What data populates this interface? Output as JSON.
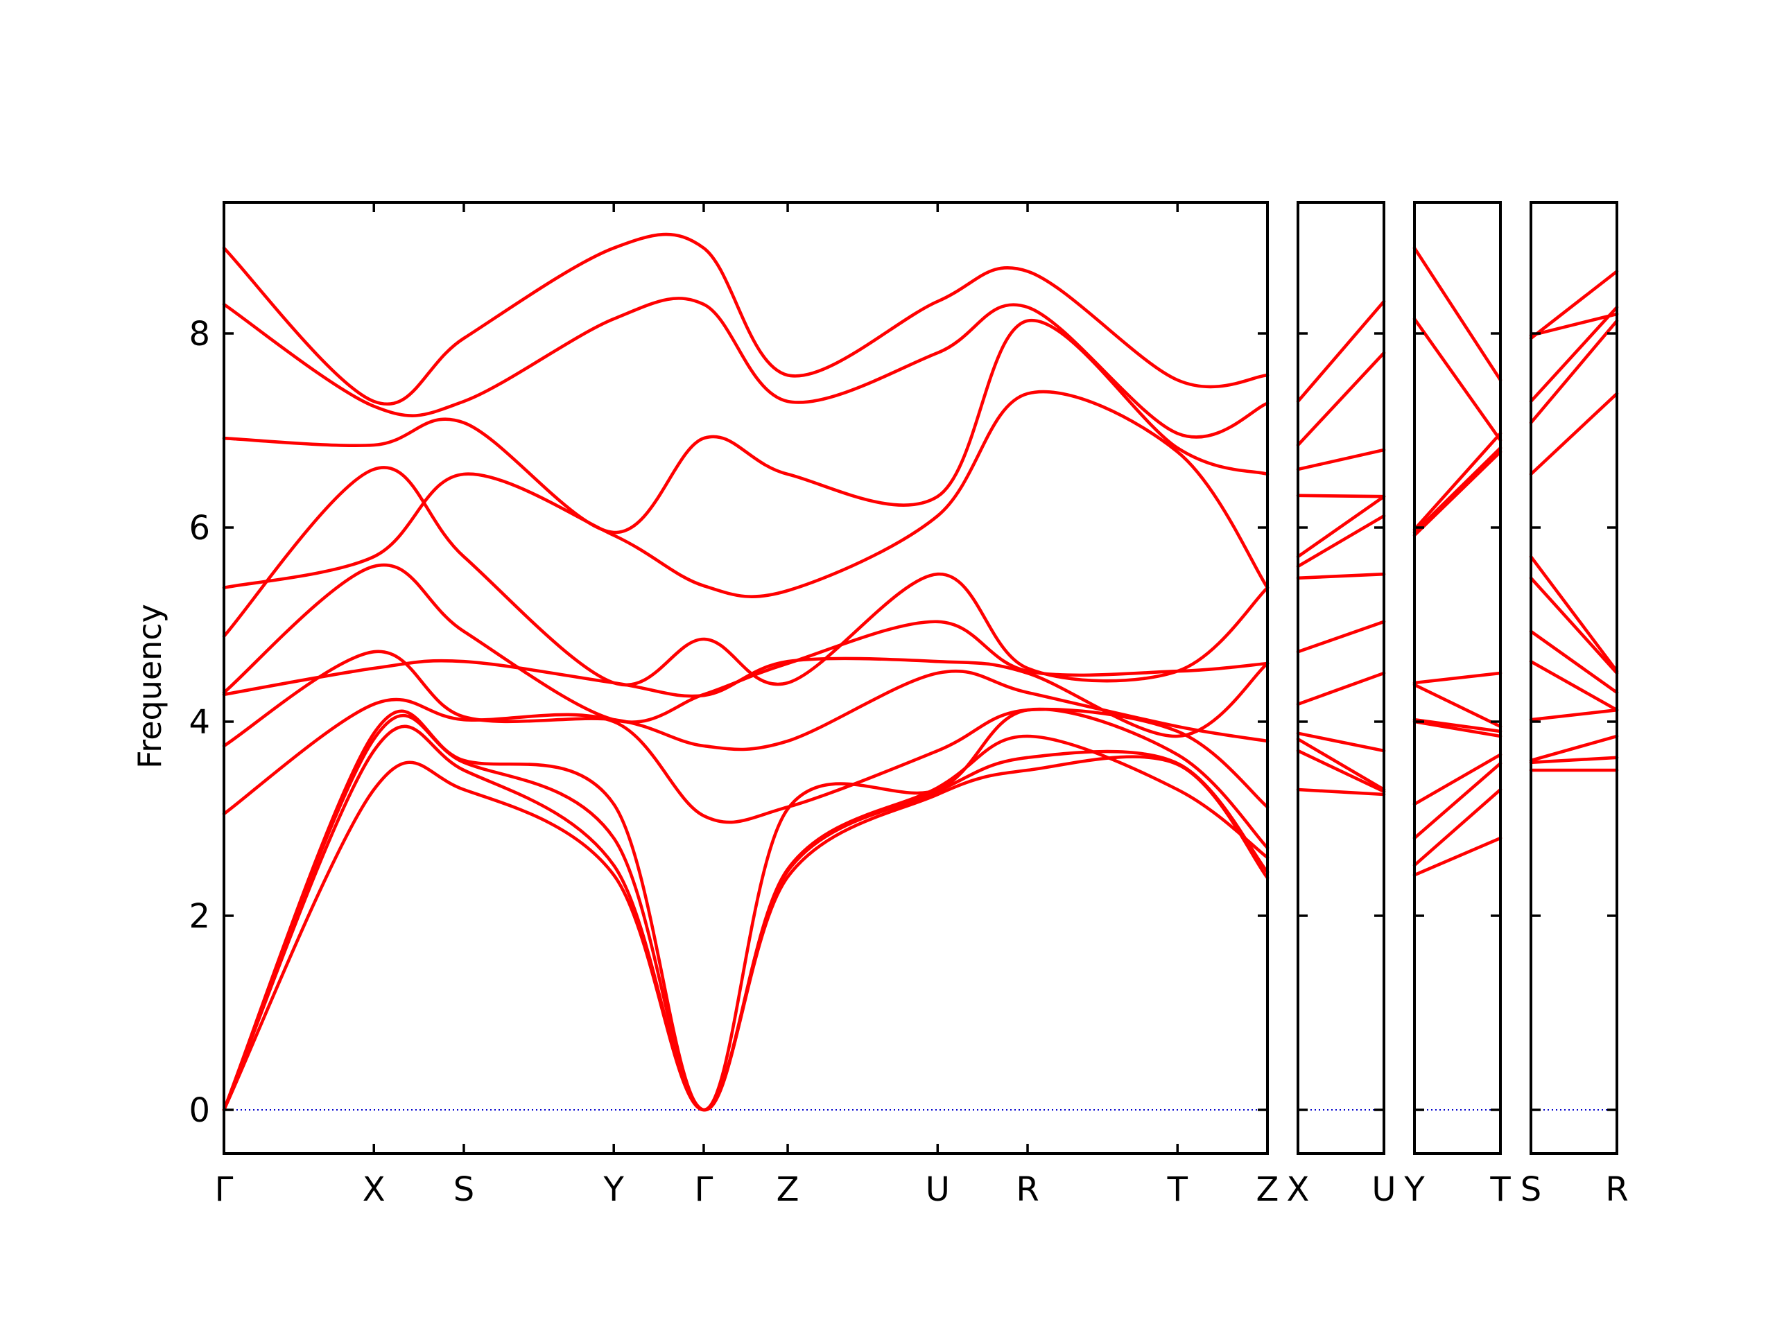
{
  "colors": {
    "band": "#ff0000",
    "zero_line": "#0000cc",
    "axes": "#000000"
  },
  "chart_data": {
    "type": "line",
    "ylabel": "Frequency",
    "ylim": [
      -0.45,
      9.35
    ],
    "yticks": [
      0,
      2,
      4,
      6,
      8
    ],
    "grid": false,
    "segments": [
      {
        "labels": [
          "Γ",
          "X",
          "S",
          "Y",
          "Γ",
          "Z",
          "U",
          "R",
          "T",
          "Z"
        ],
        "x": [
          0,
          1,
          1.6,
          2.6,
          3.2,
          3.76,
          4.76,
          5.36,
          6.36,
          6.96
        ],
        "bands": [
          [
            0,
            3.3,
            3.3,
            2.42,
            0,
            2.4,
            3.25,
            3.5,
            3.56,
            2.39
          ],
          [
            0,
            3.7,
            3.5,
            2.52,
            0,
            2.46,
            3.28,
            3.63,
            3.57,
            2.45
          ],
          [
            0,
            3.82,
            3.58,
            2.8,
            0,
            2.48,
            3.32,
            3.85,
            3.3,
            2.6
          ],
          [
            0,
            3.88,
            3.6,
            3.15,
            0,
            3.1,
            3.3,
            4.12,
            3.66,
            2.7
          ],
          [
            3.05,
            4.18,
            4.02,
            4.0,
            3.03,
            3.12,
            3.7,
            4.12,
            3.9,
            3.12
          ],
          [
            3.75,
            4.72,
            4.05,
            4.02,
            3.75,
            3.8,
            4.5,
            4.3,
            3.95,
            3.8
          ],
          [
            4.28,
            4.55,
            4.62,
            4.4,
            4.27,
            4.62,
            4.62,
            4.5,
            3.85,
            4.6
          ],
          [
            4.3,
            5.6,
            4.93,
            4.02,
            4.28,
            4.6,
            5.03,
            4.52,
            4.52,
            4.6
          ],
          [
            4.88,
            6.6,
            5.7,
            4.4,
            4.85,
            4.4,
            5.52,
            4.55,
            4.52,
            5.38
          ],
          [
            5.38,
            5.7,
            6.55,
            5.92,
            5.4,
            5.35,
            6.12,
            7.38,
            6.78,
            5.38
          ],
          [
            6.92,
            6.85,
            7.08,
            5.95,
            6.92,
            6.55,
            6.32,
            8.13,
            6.82,
            6.55
          ],
          [
            8.3,
            7.25,
            7.3,
            8.15,
            8.3,
            7.3,
            7.8,
            8.27,
            6.97,
            7.28
          ],
          [
            8.88,
            7.3,
            7.95,
            8.88,
            8.88,
            7.57,
            8.33,
            8.64,
            7.52,
            7.57
          ]
        ]
      },
      {
        "labels": [
          "X",
          "U"
        ],
        "x": [
          0,
          1
        ],
        "bands": [
          [
            3.3,
            3.25
          ],
          [
            3.7,
            3.28
          ],
          [
            3.82,
            3.3
          ],
          [
            3.88,
            3.7
          ],
          [
            4.18,
            4.5
          ],
          [
            4.72,
            5.03
          ],
          [
            5.48,
            5.52
          ],
          [
            5.6,
            6.12
          ],
          [
            5.7,
            6.32
          ],
          [
            6.33,
            6.32
          ],
          [
            6.6,
            6.8
          ],
          [
            6.85,
            7.8
          ],
          [
            7.3,
            8.33
          ]
        ]
      },
      {
        "labels": [
          "Y",
          "T"
        ],
        "x": [
          0,
          1
        ],
        "bands": [
          [
            2.42,
            2.8
          ],
          [
            2.52,
            3.3
          ],
          [
            2.8,
            3.57
          ],
          [
            3.15,
            3.66
          ],
          [
            4.0,
            3.85
          ],
          [
            4.02,
            3.9
          ],
          [
            4.38,
            3.95
          ],
          [
            4.4,
            4.5
          ],
          [
            5.92,
            6.78
          ],
          [
            5.95,
            6.82
          ],
          [
            5.98,
            6.97
          ],
          [
            8.15,
            6.9
          ],
          [
            8.88,
            7.52
          ]
        ]
      },
      {
        "labels": [
          "S",
          "R"
        ],
        "x": [
          0,
          1
        ],
        "bands": [
          [
            3.5,
            3.5
          ],
          [
            3.58,
            3.63
          ],
          [
            3.6,
            3.85
          ],
          [
            4.02,
            4.12
          ],
          [
            4.62,
            4.12
          ],
          [
            4.93,
            4.3
          ],
          [
            5.48,
            4.5
          ],
          [
            5.7,
            4.52
          ],
          [
            6.55,
            7.38
          ],
          [
            7.08,
            8.13
          ],
          [
            7.3,
            8.27
          ],
          [
            7.95,
            8.64
          ],
          [
            7.98,
            8.2
          ]
        ]
      }
    ]
  }
}
